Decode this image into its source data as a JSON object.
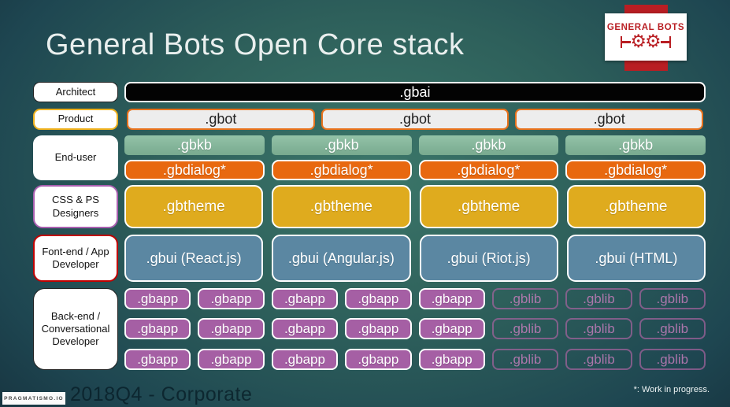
{
  "slide": {
    "title": "General Bots Open Core stack",
    "footnote": "*: Work in progress.",
    "footer": {
      "logo_text": "PRAGMATISMO.IO",
      "text": "2018Q4 - Corporate"
    },
    "brand": {
      "name": "GENERAL BOTS"
    }
  },
  "stack": {
    "architect": {
      "label": "Architect",
      "bar": ".gbai"
    },
    "product": {
      "label": "Product",
      "boxes": [
        ".gbot",
        ".gbot",
        ".gbot"
      ]
    },
    "end_user": {
      "label": "End-user",
      "gbkb": [
        ".gbkb",
        ".gbkb",
        ".gbkb",
        ".gbkb"
      ],
      "gbdialog": [
        ".gbdialog*",
        ".gbdialog*",
        ".gbdialog*",
        ".gbdialog*"
      ]
    },
    "designers": {
      "label": "CSS & PS Designers",
      "boxes": [
        ".gbtheme",
        ".gbtheme",
        ".gbtheme",
        ".gbtheme"
      ]
    },
    "frontend": {
      "label": "Font-end / App Developer",
      "boxes": [
        ".gbui (React.js)",
        ".gbui (Angular.js)",
        ".gbui (Riot.js)",
        ".gbui (HTML)"
      ]
    },
    "backend": {
      "label": "Back-end / Conversational Developer",
      "rows": [
        {
          "gbapp": [
            ".gbapp",
            ".gbapp",
            ".gbapp",
            ".gbapp",
            ".gbapp"
          ],
          "gblib": [
            ".gblib",
            ".gblib",
            ".gblib"
          ]
        },
        {
          "gbapp": [
            ".gbapp",
            ".gbapp",
            ".gbapp",
            ".gbapp",
            ".gbapp"
          ],
          "gblib": [
            ".gblib",
            ".gblib",
            ".gblib"
          ]
        },
        {
          "gbapp": [
            ".gbapp",
            ".gbapp",
            ".gbapp",
            ".gbapp",
            ".gbapp"
          ],
          "gblib": [
            ".gblib",
            ".gblib",
            ".gblib"
          ]
        }
      ]
    }
  },
  "colors": {
    "background_center": "#3b7669",
    "background_edge": "#152f3b",
    "brand_red": "#b91e23",
    "gbai_fill": "#030303",
    "gbot_fill": "#ededed",
    "gbot_border": "#e8721c",
    "gbkb_fill": "#85b59a",
    "gbdialog_fill": "#e8680f",
    "gbtheme_fill": "#dfab1e",
    "gbui_fill": "#5b87a2",
    "gbapp_fill": "#a55fa4",
    "gblib_accent": "#a864a0",
    "label_product_border": "#eeb01c",
    "label_designers_border": "#a95fb0",
    "label_frontend_border": "#c00000"
  }
}
